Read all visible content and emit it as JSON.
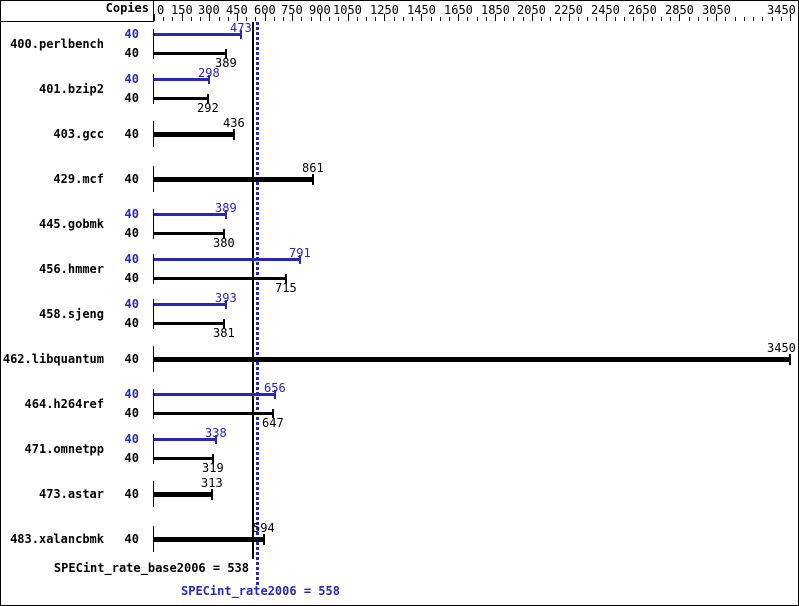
{
  "header": {
    "copies_label": "Copies"
  },
  "colors": {
    "peak_blue": "#2828b4",
    "base_black": "#000000"
  },
  "summary": {
    "base_label": "SPECint_rate_base2006 = 538",
    "peak_label": "SPECint_rate2006 = 558",
    "base_value": 538,
    "peak_value": 558
  },
  "chart_data": {
    "type": "bar",
    "orientation": "horizontal",
    "title": "",
    "xlabel": "",
    "ylabel": "Copies",
    "xlim": [
      0,
      3450
    ],
    "x_tick_interval": 50,
    "x_labeled_ticks": [
      0,
      150,
      300,
      450,
      600,
      750,
      900,
      1050,
      1250,
      1450,
      1650,
      1850,
      2050,
      2250,
      2450,
      2650,
      2850,
      3050,
      3450
    ],
    "grid": false,
    "legend": "none",
    "categories": [
      "400.perlbench",
      "401.bzip2",
      "403.gcc",
      "429.mcf",
      "445.gobmk",
      "456.hmmer",
      "458.sjeng",
      "462.libquantum",
      "464.h264ref",
      "471.omnetpp",
      "473.astar",
      "483.xalancbmk"
    ],
    "copies": [
      40,
      40,
      40,
      40,
      40,
      40,
      40,
      40,
      40,
      40,
      40,
      40
    ],
    "series": [
      {
        "name": "SPECint_rate2006 (peak)",
        "color": "#2828b4",
        "values": [
          473,
          298,
          null,
          null,
          389,
          791,
          393,
          null,
          656,
          338,
          null,
          null
        ]
      },
      {
        "name": "SPECint_rate_base2006 (base)",
        "color": "#000000",
        "values": [
          389,
          292,
          436,
          861,
          380,
          715,
          381,
          3450,
          647,
          319,
          313,
          594
        ]
      }
    ],
    "reference_lines": [
      {
        "label": "SPECint_rate_base2006",
        "value": 538,
        "color": "#000000",
        "style": "solid"
      },
      {
        "label": "SPECint_rate2006",
        "value": 558,
        "color": "#2828b4",
        "style": "dotted"
      }
    ]
  }
}
